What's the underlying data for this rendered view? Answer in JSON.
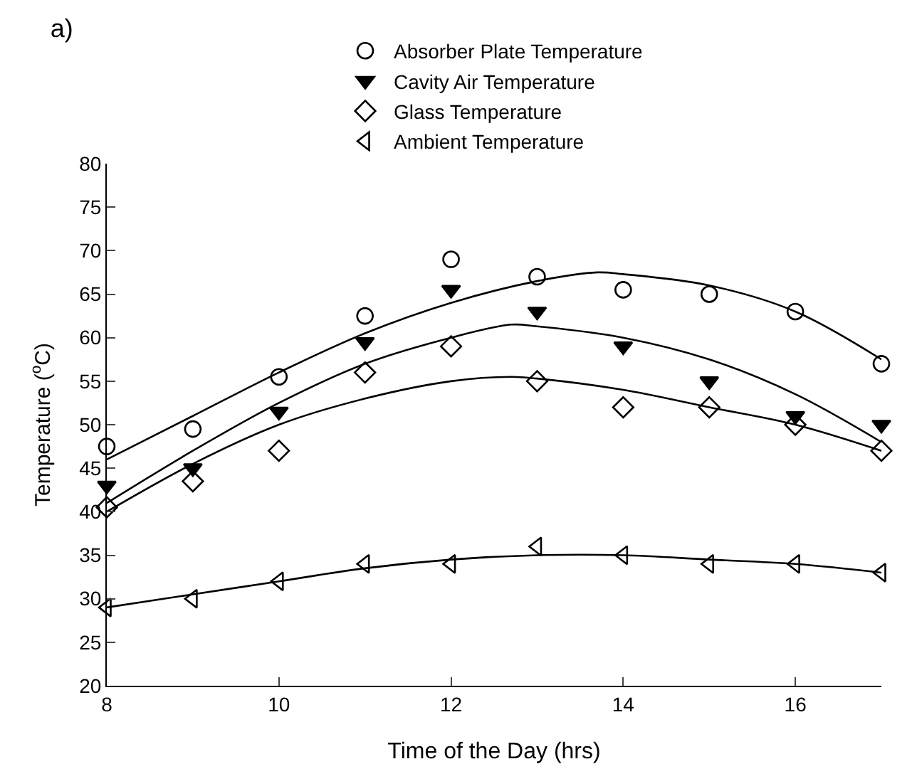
{
  "chart_data": {
    "type": "scatter",
    "title": "a)",
    "xlabel": "Time of the Day (hrs)",
    "ylabel": "Temperature ($^{o}$C)",
    "x": [
      8,
      9,
      10,
      11,
      12,
      13,
      14,
      15,
      16,
      17
    ],
    "xlim": [
      8,
      17
    ],
    "xticks": [
      8,
      10,
      12,
      14,
      16
    ],
    "ylim": [
      20,
      80
    ],
    "yticks": [
      20,
      25,
      30,
      35,
      40,
      45,
      50,
      55,
      60,
      65,
      70,
      75,
      80
    ],
    "grid": false,
    "legend": "top",
    "series": [
      {
        "name": "Absorber Plate Temperature",
        "color": "#000000",
        "marker": "circle",
        "values": [
          47.5,
          49.5,
          55.5,
          62.5,
          69,
          67,
          65.5,
          65,
          63,
          57
        ]
      },
      {
        "name": "Cavity Air Temperature",
        "color": "#000000",
        "marker": "triangle-down",
        "values": [
          43,
          45,
          51.5,
          59.5,
          65.5,
          63,
          59,
          55,
          51,
          50
        ]
      },
      {
        "name": "Glass Temperature",
        "color": "#000000",
        "marker": "diamond",
        "values": [
          40.5,
          43.5,
          47,
          56,
          59,
          55,
          52,
          52,
          50,
          47
        ]
      },
      {
        "name": "Ambient Temperature",
        "color": "#000000",
        "marker": "triangle-left",
        "values": [
          29,
          30,
          32,
          34,
          34,
          36,
          35,
          34,
          34,
          33
        ]
      },
      {
        "type": "line",
        "color": "#000000",
        "marker": "none",
        "line_style": "solid",
        "x": [
          8,
          9,
          10,
          11,
          12,
          13,
          13.7,
          14,
          15,
          16,
          17
        ],
        "values": [
          46,
          51,
          56,
          60.5,
          64,
          66.5,
          67.5,
          67.3,
          66,
          63,
          57.5
        ]
      },
      {
        "type": "line",
        "color": "#000000",
        "marker": "none",
        "line_style": "solid",
        "x": [
          8,
          9,
          10,
          11,
          12,
          12.7,
          13,
          14,
          15,
          16,
          17
        ],
        "values": [
          41,
          47,
          52.5,
          57,
          60,
          61.5,
          61.3,
          60,
          57.5,
          53.5,
          48
        ]
      },
      {
        "type": "line",
        "color": "#000000",
        "marker": "none",
        "line_style": "solid",
        "x": [
          8,
          9,
          10,
          11,
          12,
          12.7,
          13,
          14,
          15,
          16,
          17
        ],
        "values": [
          40,
          45.5,
          50,
          53,
          55,
          55.5,
          55.3,
          54,
          52,
          50,
          47
        ]
      },
      {
        "type": "line",
        "color": "#000000",
        "marker": "none",
        "line_style": "solid",
        "x": [
          8,
          9,
          10,
          11,
          12,
          13,
          14,
          15,
          16,
          17
        ],
        "values": [
          29,
          30.5,
          32,
          33.5,
          34.5,
          35,
          35,
          34.5,
          34,
          33
        ]
      }
    ]
  }
}
